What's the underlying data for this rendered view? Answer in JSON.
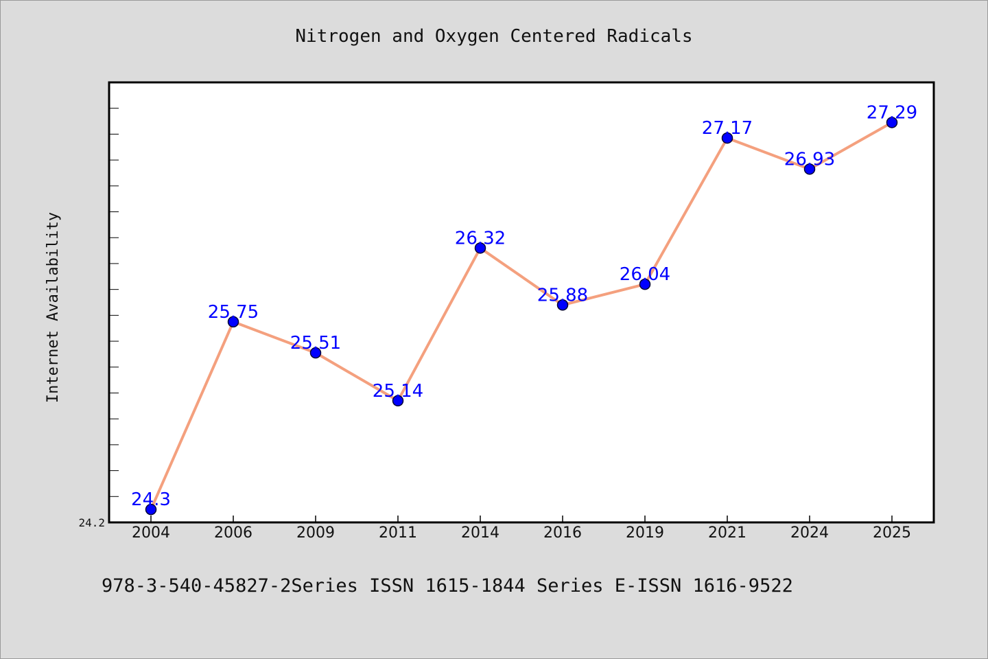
{
  "chart_data": {
    "type": "line",
    "title": "Nitrogen and Oxygen Centered Radicals",
    "xlabel": "",
    "ylabel": "Internet Availability",
    "categories": [
      "2004",
      "2006",
      "2009",
      "2011",
      "2014",
      "2016",
      "2019",
      "2021",
      "2024",
      "2025"
    ],
    "series": [
      {
        "values": [
          24.3,
          25.75,
          25.51,
          25.14,
          26.32,
          25.88,
          26.04,
          27.17,
          26.93,
          27.29
        ]
      }
    ],
    "data_labels": [
      "24.3",
      "25.75",
      "25.51",
      "25.14",
      "26.32",
      "25.88",
      "26.04",
      "27.17",
      "26.93",
      "27.29"
    ],
    "y_tick_labels": [
      "24.2"
    ],
    "ylim": [
      24.2,
      27.6
    ],
    "grid": false,
    "legend": "none",
    "colors": {
      "line": "#f4a07e",
      "marker": "#0000ff",
      "marker_edge": "#000033",
      "data_label": "#0000ff",
      "plot_background": "#ffffff",
      "figure_background": "#dcdcdc"
    }
  },
  "footer_text": "978-3-540-45827-2Series ISSN 1615-1844 Series E-ISSN 1616-9522"
}
